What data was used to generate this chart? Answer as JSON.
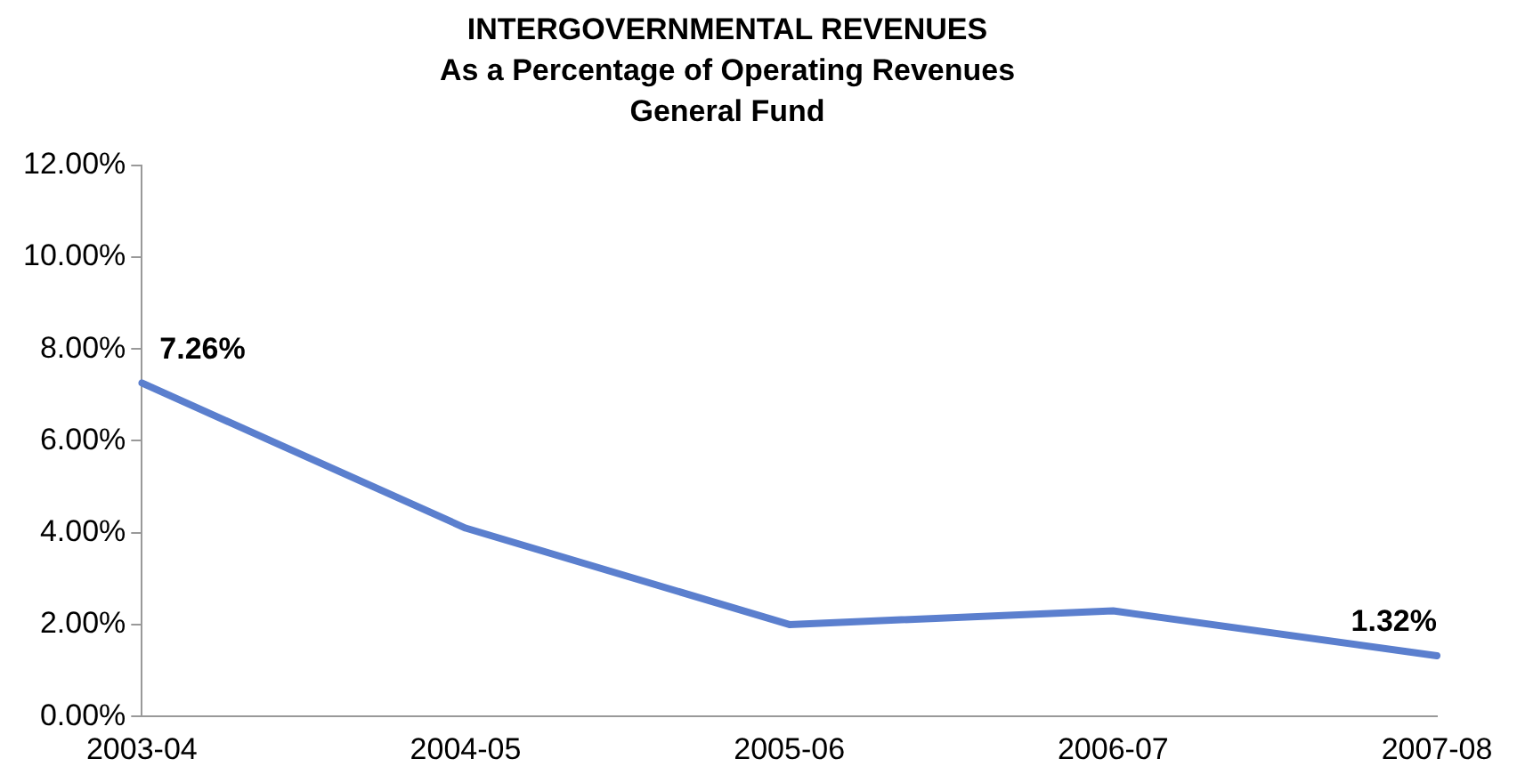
{
  "chart_data": {
    "type": "line",
    "title": "INTERGOVERNMENTAL REVENUES\nAs a Percentage of Operating Revenues\nGeneral Fund",
    "categories": [
      "2003-04",
      "2004-05",
      "2005-06",
      "2006-07",
      "2007-08"
    ],
    "values": [
      7.26,
      4.1,
      2.0,
      2.3,
      1.32
    ],
    "value_labels": [
      "7.26%",
      null,
      null,
      null,
      "1.32%"
    ],
    "color": "#5b7fce",
    "marker": "none",
    "line_style": "solid",
    "grid": false,
    "legend": false,
    "ylim": [
      0,
      12
    ],
    "yticks": [
      {
        "value": 0,
        "label": "0.00%"
      },
      {
        "value": 2,
        "label": "2.00%"
      },
      {
        "value": 4,
        "label": "4.00%"
      },
      {
        "value": 6,
        "label": "6.00%"
      },
      {
        "value": 8,
        "label": "8.00%"
      },
      {
        "value": 10,
        "label": "10.00%"
      },
      {
        "value": 12,
        "label": "12.00%"
      }
    ]
  }
}
